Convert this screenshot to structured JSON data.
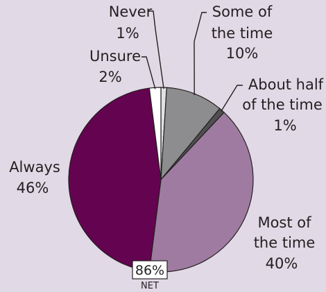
{
  "chart_data": {
    "type": "pie",
    "slices": [
      {
        "label": "Never",
        "value": 1,
        "value_label": "1%",
        "color": "#e1e1e1"
      },
      {
        "label": "Some of the time",
        "value": 10,
        "value_label": "10%",
        "color": "#8d8d8f"
      },
      {
        "label": "About half of the time",
        "value": 1,
        "value_label": "1%",
        "color": "#505052"
      },
      {
        "label": "Most of the time",
        "value": 40,
        "value_label": "40%",
        "color": "#9f7ba1"
      },
      {
        "label": "Always",
        "value": 46,
        "value_label": "46%",
        "color": "#640450"
      },
      {
        "label": "Unsure",
        "value": 2,
        "value_label": "2%",
        "color": "#ffffff"
      }
    ],
    "net": {
      "value": "86%",
      "caption": "NET"
    }
  }
}
